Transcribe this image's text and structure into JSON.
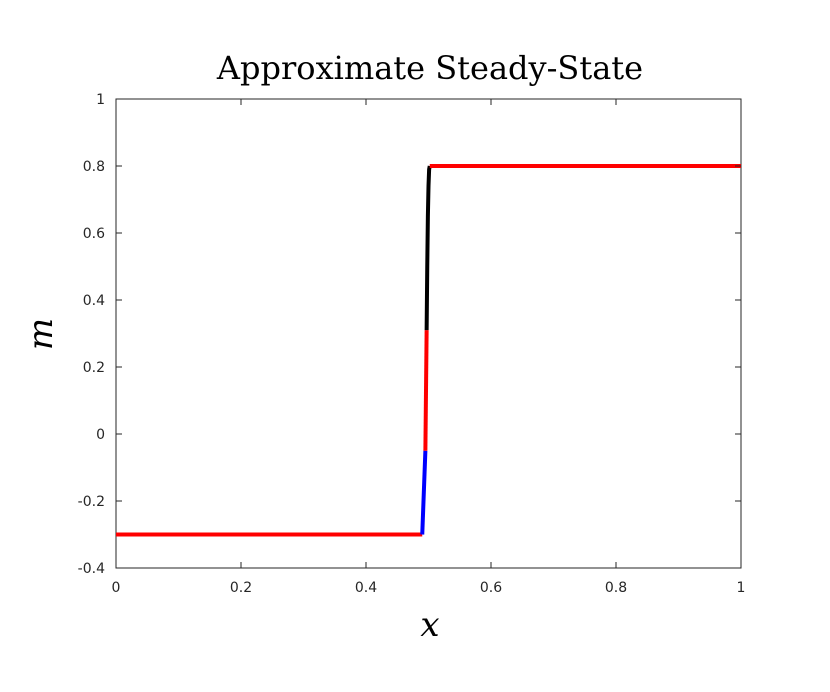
{
  "chart_data": {
    "type": "line",
    "title": "Approximate Steady-State",
    "xlabel": "x",
    "ylabel": "m",
    "xlim": [
      0,
      1
    ],
    "ylim": [
      -0.4,
      1
    ],
    "x_ticks": [
      "0",
      "0.2",
      "0.4",
      "0.6",
      "0.8",
      "1"
    ],
    "y_ticks": [
      "-0.4",
      "-0.2",
      "0",
      "0.2",
      "0.4",
      "0.6",
      "0.8",
      "1"
    ],
    "grid": false,
    "series": [
      {
        "color": "#ff0000",
        "x": [
          0,
          0.49
        ],
        "y": [
          -0.3,
          -0.3
        ]
      },
      {
        "color": "#0000ff",
        "x": [
          0.49,
          0.495
        ],
        "y": [
          -0.3,
          -0.05
        ]
      },
      {
        "color": "#ff0000",
        "x": [
          0.495,
          0.497
        ],
        "y": [
          -0.05,
          0.31
        ]
      },
      {
        "color": "#000000",
        "x": [
          0.497,
          0.498,
          0.499,
          0.5,
          0.501,
          0.502
        ],
        "y": [
          0.31,
          0.5,
          0.65,
          0.74,
          0.79,
          0.8
        ]
      },
      {
        "color": "#ff0000",
        "x": [
          0.502,
          1
        ],
        "y": [
          0.8,
          0.8
        ]
      }
    ]
  }
}
